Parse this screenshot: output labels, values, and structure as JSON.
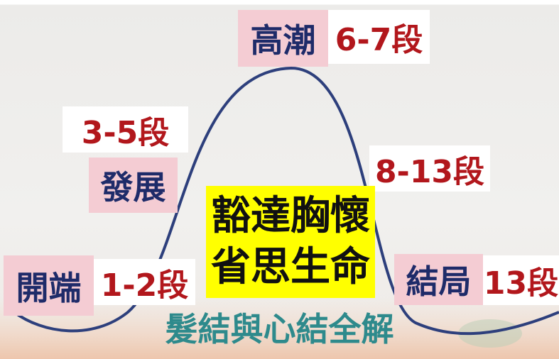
{
  "climax": {
    "label": "高潮",
    "paragraphs": "6-7段"
  },
  "rising": {
    "label": "發展",
    "paragraphs": "3-5段"
  },
  "falling": {
    "paragraphs": "8-13段"
  },
  "theme": {
    "line1": "豁達胸懷",
    "line2": "省思生命"
  },
  "beginning": {
    "label": "開端",
    "paragraphs": "1-2段"
  },
  "ending": {
    "label": "結局",
    "paragraphs": "13段"
  },
  "caption": "髮結與心結全解"
}
